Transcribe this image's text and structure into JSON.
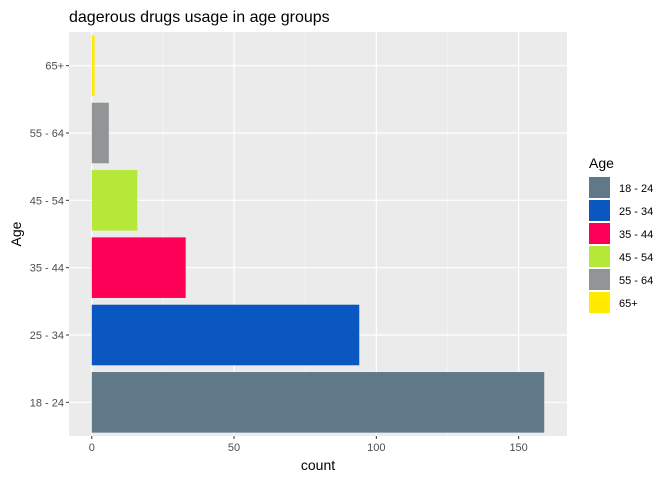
{
  "chart_data": {
    "type": "bar",
    "orientation": "horizontal",
    "title": "dagerous drugs usage in age groups",
    "xlabel": "count",
    "ylabel": "Age",
    "categories": [
      "18 - 24",
      "25 - 34",
      "35 - 44",
      "45 - 54",
      "55 - 64",
      "65+"
    ],
    "values": [
      159,
      94,
      33,
      16,
      6,
      1
    ],
    "colors": [
      "#607888",
      "#0b57c2",
      "#ff0059",
      "#b6e83a",
      "#929596",
      "#ffea00"
    ],
    "xlim": [
      -8,
      167
    ],
    "xticks": [
      0,
      50,
      100,
      150
    ],
    "grid": true,
    "legend": {
      "title": "Age",
      "position": "right",
      "entries": [
        "18 - 24",
        "25 - 34",
        "35 - 44",
        "45 - 54",
        "55 - 64",
        "65+"
      ]
    }
  }
}
